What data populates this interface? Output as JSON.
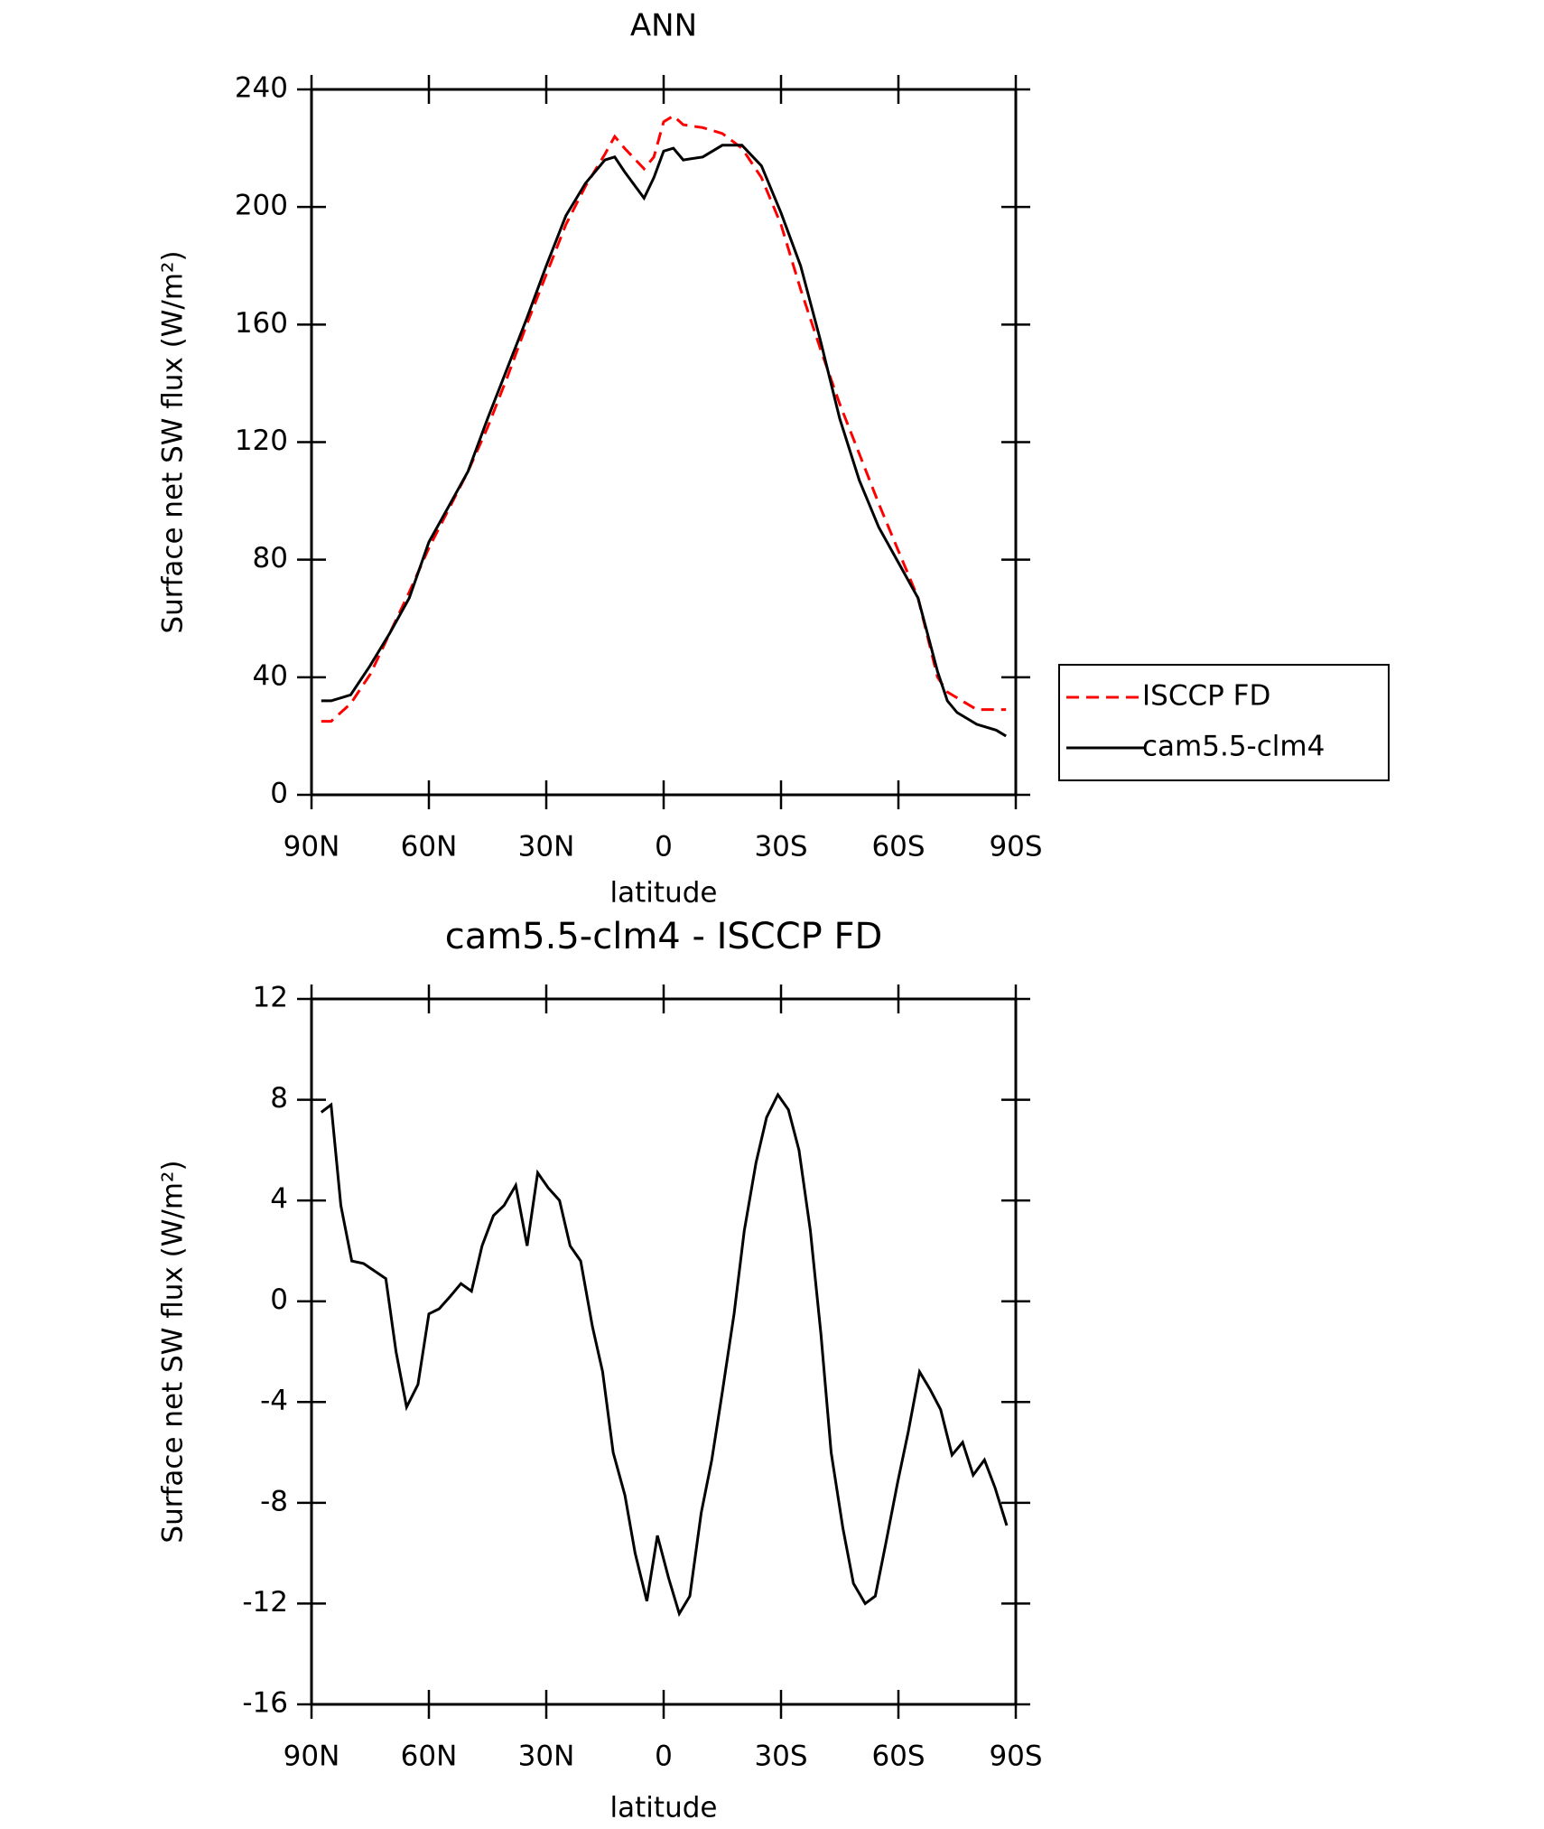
{
  "chart_data": [
    {
      "type": "line",
      "title": "ANN",
      "xlabel": "latitude",
      "ylabel": "Surface net SW flux (W/m²)",
      "x": [
        87.5,
        85,
        80,
        75,
        70,
        65,
        60,
        55,
        50,
        45,
        40,
        35,
        30,
        25,
        20,
        15,
        12.5,
        10,
        5,
        2.5,
        0,
        -2.5,
        -5,
        -10,
        -15,
        -20,
        -25,
        -30,
        -35,
        -40,
        -45,
        -50,
        -55,
        -60,
        -65,
        -70,
        -72.5,
        -75,
        -80,
        -85,
        -87.5
      ],
      "series": [
        {
          "name": "ISCCP FD",
          "color": "#ff0000",
          "line_style": "dashed",
          "values": [
            25,
            25,
            31,
            41,
            55,
            69,
            84,
            97,
            110,
            125,
            142,
            160,
            177,
            194,
            207,
            218,
            224,
            220,
            213,
            217,
            229,
            231,
            228,
            227,
            225,
            220,
            210,
            194,
            172,
            152,
            133,
            116,
            99,
            83,
            67,
            40,
            35,
            33,
            29,
            29,
            29
          ]
        },
        {
          "name": "cam5.5-clm4",
          "color": "#000000",
          "line_style": "solid",
          "values": [
            32,
            32,
            34,
            44,
            55,
            67,
            86,
            98,
            110,
            128,
            145,
            162,
            180,
            197,
            208,
            216,
            217,
            212,
            203,
            210,
            219,
            220,
            216,
            217,
            221,
            221,
            214,
            198,
            180,
            155,
            128,
            107,
            91,
            79,
            67,
            42,
            32,
            28,
            24,
            22,
            20
          ]
        }
      ],
      "xlim": [
        90,
        -90
      ],
      "ylim": [
        0,
        240
      ],
      "xticks": [
        {
          "value": 90,
          "label": "90N"
        },
        {
          "value": 60,
          "label": "60N"
        },
        {
          "value": 30,
          "label": "30N"
        },
        0,
        {
          "value": -30,
          "label": "30S"
        },
        {
          "value": -60,
          "label": "60S"
        },
        {
          "value": -90,
          "label": "90S"
        }
      ],
      "yticks": [
        0,
        40,
        80,
        120,
        160,
        200,
        240
      ],
      "legend": "outside-right"
    },
    {
      "type": "line",
      "title": "cam5.5-clm4 - ISCCP FD",
      "xlabel": "latitude",
      "ylabel": "Surface net SW flux (W/m²)",
      "x": [
        87.5,
        85,
        82.5,
        79.7,
        76.7,
        71,
        68.4,
        65.7,
        62.8,
        60,
        57.4,
        54.5,
        51.8,
        49.1,
        46.4,
        43.5,
        40.8,
        37.8,
        34.9,
        32.2,
        29.5,
        26.6,
        23.9,
        21.2,
        18.2,
        15.6,
        12.9,
        9.9,
        7.3,
        4.3,
        1.6,
        -1.3,
        -4,
        -6.7,
        -9.6,
        -12.3,
        -15,
        -18,
        -20.6,
        -23.6,
        -26.3,
        -29.2,
        -31.9,
        -34.6,
        -37.5,
        -40.2,
        -42.8,
        -45.8,
        -48.5,
        -51.5,
        -54.1,
        -56.8,
        -59.8,
        -62.5,
        -65.4,
        -68.1,
        -70.8,
        -73.7,
        -76.4,
        -79.1,
        -82,
        -84.7,
        -87.7
      ],
      "series": [
        {
          "color": "#000000",
          "line_style": "solid",
          "values": [
            7.5,
            7.8,
            3.8,
            1.6,
            1.5,
            0.9,
            -2,
            -4.2,
            -3.3,
            -0.5,
            -0.3,
            0.2,
            0.7,
            0.4,
            2.2,
            3.4,
            3.8,
            4.6,
            2.2,
            5.1,
            4.5,
            4,
            2.2,
            1.6,
            -1,
            -2.8,
            -6,
            -7.7,
            -10,
            -11.9,
            -9.3,
            -11,
            -12.4,
            -11.7,
            -8.4,
            -6.3,
            -3.6,
            -0.5,
            2.8,
            5.5,
            7.3,
            8.2,
            7.6,
            6,
            2.8,
            -1.3,
            -6,
            -9,
            -11.2,
            -12,
            -11.7,
            -9.6,
            -7.2,
            -5.2,
            -2.8,
            -3.5,
            -4.3,
            -6.1,
            -5.6,
            -6.9,
            -6.3,
            -7.4,
            -8.9
          ]
        }
      ],
      "xlim": [
        90,
        -90
      ],
      "ylim": [
        -16,
        12
      ],
      "xticks": [
        {
          "value": 90,
          "label": "90N"
        },
        {
          "value": 60,
          "label": "60N"
        },
        {
          "value": 30,
          "label": "30N"
        },
        0,
        {
          "value": -30,
          "label": "30S"
        },
        {
          "value": -60,
          "label": "60S"
        },
        {
          "value": -90,
          "label": "90S"
        }
      ],
      "yticks": [
        -16,
        -12,
        -8,
        -4,
        0,
        4,
        8,
        12
      ]
    }
  ]
}
